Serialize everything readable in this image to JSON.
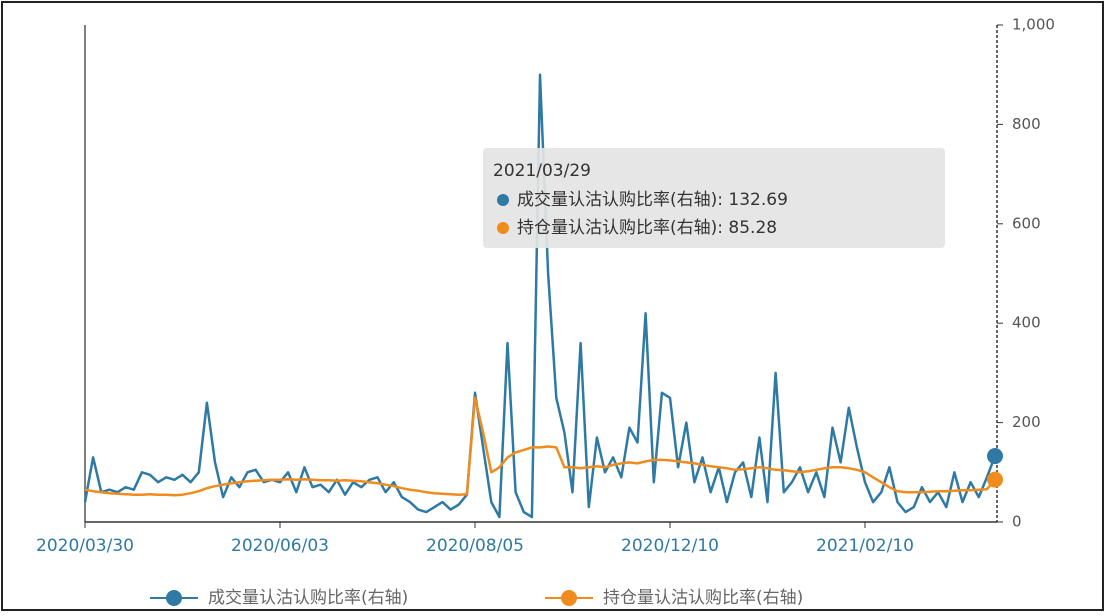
{
  "chart_data": {
    "type": "line",
    "categories": [
      "2020/03/30",
      null,
      null,
      null,
      null,
      null,
      null,
      null,
      null,
      null,
      null,
      null,
      null,
      null,
      null,
      null,
      null,
      null,
      null,
      null,
      null,
      null,
      null,
      null,
      "2020/06/03",
      null,
      null,
      null,
      null,
      null,
      null,
      null,
      null,
      null,
      null,
      null,
      null,
      null,
      null,
      null,
      null,
      null,
      null,
      null,
      null,
      null,
      null,
      null,
      "2020/08/05",
      null,
      null,
      null,
      null,
      null,
      null,
      null,
      null,
      null,
      null,
      null,
      null,
      null,
      null,
      null,
      null,
      null,
      null,
      null,
      null,
      null,
      null,
      null,
      "2020/12/10",
      null,
      null,
      null,
      null,
      null,
      null,
      null,
      null,
      null,
      null,
      null,
      null,
      null,
      null,
      null,
      null,
      null,
      null,
      null,
      null,
      null,
      null,
      null,
      "2021/02/10",
      null,
      null,
      null,
      null,
      null,
      null,
      null,
      null,
      null,
      null,
      null,
      null,
      null,
      null,
      null,
      null
    ],
    "series": [
      {
        "name": "成交量认沽认购比率(右轴)",
        "color": "#2f7aa5",
        "axis": "y2",
        "values": [
          40,
          130,
          60,
          65,
          60,
          70,
          65,
          100,
          95,
          80,
          90,
          85,
          95,
          80,
          100,
          240,
          120,
          50,
          90,
          70,
          100,
          105,
          80,
          85,
          80,
          100,
          60,
          110,
          70,
          75,
          60,
          85,
          55,
          80,
          70,
          85,
          90,
          60,
          80,
          50,
          40,
          25,
          20,
          30,
          40,
          25,
          35,
          55,
          260,
          150,
          40,
          10,
          360,
          60,
          20,
          10,
          900,
          500,
          250,
          180,
          60,
          360,
          30,
          170,
          100,
          130,
          90,
          190,
          160,
          420,
          80,
          260,
          250,
          110,
          200,
          80,
          130,
          60,
          110,
          40,
          100,
          120,
          50,
          170,
          40,
          300,
          60,
          80,
          110,
          60,
          100,
          50,
          190,
          120,
          230,
          150,
          80,
          40,
          60,
          110,
          40,
          20,
          30,
          70,
          40,
          60,
          30,
          100,
          40,
          80,
          50,
          90,
          132.69
        ]
      },
      {
        "name": "持仓量认沽认购比率(右轴)",
        "color": "#f08c1e",
        "axis": "y2",
        "values": [
          65,
          62,
          60,
          58,
          57,
          56,
          55,
          55,
          56,
          55,
          55,
          54,
          55,
          58,
          62,
          68,
          72,
          75,
          78,
          80,
          82,
          83,
          84,
          85,
          85,
          86,
          85,
          86,
          85,
          84,
          84,
          83,
          84,
          83,
          82,
          80,
          78,
          75,
          72,
          68,
          65,
          63,
          60,
          58,
          57,
          56,
          55,
          56,
          250,
          180,
          100,
          110,
          130,
          140,
          145,
          150,
          150,
          152,
          150,
          110,
          110,
          108,
          110,
          112,
          110,
          115,
          118,
          120,
          118,
          122,
          125,
          125,
          124,
          122,
          120,
          118,
          115,
          112,
          110,
          108,
          105,
          106,
          108,
          110,
          108,
          105,
          104,
          102,
          100,
          102,
          105,
          108,
          110,
          110,
          108,
          105,
          100,
          90,
          80,
          70,
          62,
          60,
          60,
          60,
          61,
          62,
          62,
          63,
          64,
          64,
          65,
          66,
          85.28
        ]
      }
    ],
    "y2lim": [
      0,
      1000
    ],
    "y2ticks": [
      0,
      200,
      400,
      600,
      800,
      {
        "value": 1000,
        "label": "1,000"
      }
    ],
    "tooltip": {
      "title": "2021/03/29"
    },
    "legend": "bottom"
  }
}
